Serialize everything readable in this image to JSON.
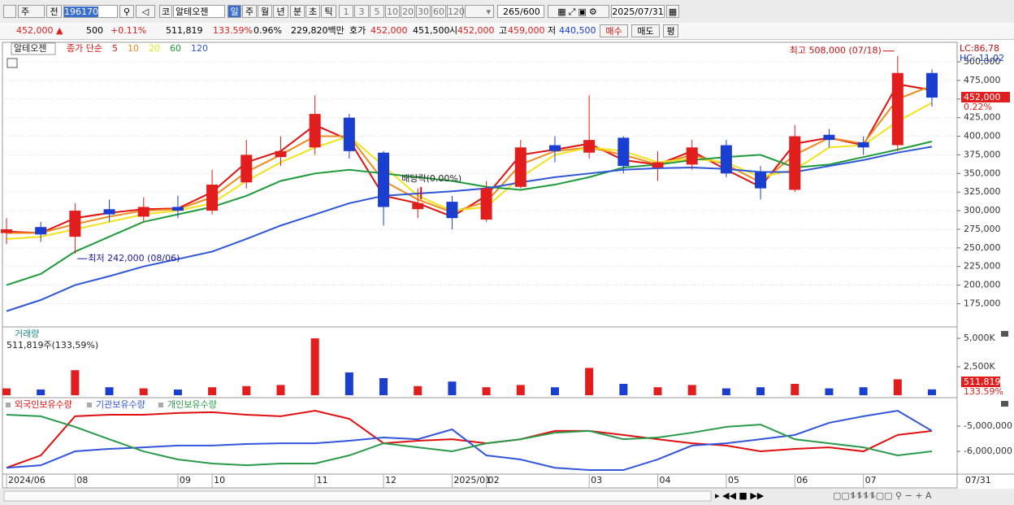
{
  "toolbar": {
    "items": [
      "주",
      "전",
      "196170",
      "코",
      "알테오젠",
      "일",
      "주",
      "월",
      "년",
      "분",
      "초",
      "틱",
      "1",
      "3",
      "5",
      "10",
      "20",
      "30",
      "60",
      "120",
      "265",
      "/600",
      "2025/07/31"
    ]
  },
  "info_bar": {
    "items": [
      "452,000 ▲",
      "500",
      "+0.11%",
      "511,819",
      "133.59%",
      "0.96%",
      "229,820백만",
      "호가",
      "452,000",
      "451,500",
      "시",
      "452,000",
      "고",
      "459,000",
      "저",
      "440,500",
      "매수",
      "매도",
      "평"
    ]
  },
  "chart_data": [
    {
      "type": "candlestick",
      "title": "알테오젠",
      "legend_prefix": "종가 단순",
      "categories": [
        "2024/06",
        null,
        "08",
        null,
        null,
        "09",
        "10",
        null,
        null,
        "11",
        null,
        "12",
        null,
        "2025/01",
        "02",
        null,
        null,
        "03",
        null,
        "04",
        null,
        "05",
        null,
        "06",
        null,
        "07",
        null,
        null
      ],
      "end_label": "07/31",
      "open": [
        270000,
        278000,
        265000,
        302000,
        292000,
        305000,
        300000,
        338000,
        372000,
        385000,
        425000,
        378000,
        302000,
        312000,
        288000,
        332000,
        388000,
        378000,
        398000,
        358000,
        362000,
        388000,
        352000,
        328000,
        402000,
        392000,
        388000,
        485000
      ],
      "high": [
        290000,
        285000,
        310000,
        315000,
        318000,
        320000,
        355000,
        395000,
        400000,
        455000,
        430000,
        380000,
        330000,
        320000,
        340000,
        395000,
        400000,
        455000,
        400000,
        380000,
        395000,
        395000,
        360000,
        415000,
        410000,
        400000,
        508000,
        490000
      ],
      "low": [
        255000,
        258000,
        242000,
        285000,
        285000,
        290000,
        295000,
        330000,
        360000,
        375000,
        370000,
        280000,
        290000,
        275000,
        285000,
        330000,
        365000,
        370000,
        350000,
        340000,
        355000,
        345000,
        315000,
        325000,
        385000,
        375000,
        380000,
        440000
      ],
      "close": [
        275000,
        268000,
        300000,
        295000,
        305000,
        300000,
        335000,
        375000,
        380000,
        430000,
        380000,
        305000,
        310000,
        290000,
        330000,
        385000,
        380000,
        395000,
        360000,
        365000,
        385000,
        350000,
        330000,
        400000,
        395000,
        385000,
        485000,
        452000
      ],
      "up_color": "#e21d1d",
      "down_color": "#1a3fd0",
      "series": [
        {
          "name": "5",
          "color": "#e01010",
          "values": [
            272000,
            270000,
            290000,
            297000,
            302000,
            303000,
            325000,
            365000,
            380000,
            415000,
            395000,
            320000,
            310000,
            292000,
            320000,
            375000,
            382000,
            390000,
            368000,
            362000,
            380000,
            355000,
            332000,
            390000,
            398000,
            388000,
            470000,
            462000
          ]
        },
        {
          "name": "10",
          "color": "#f08a1c",
          "values": [
            270000,
            270000,
            282000,
            292000,
            300000,
            302000,
            318000,
            352000,
            375000,
            400000,
            400000,
            340000,
            315000,
            298000,
            312000,
            362000,
            380000,
            385000,
            375000,
            362000,
            375000,
            362000,
            338000,
            375000,
            398000,
            390000,
            450000,
            468000
          ]
        },
        {
          "name": "20",
          "color": "#f2e21a",
          "values": [
            262000,
            265000,
            275000,
            285000,
            295000,
            300000,
            310000,
            340000,
            365000,
            385000,
            400000,
            360000,
            320000,
            300000,
            305000,
            345000,
            375000,
            385000,
            380000,
            365000,
            370000,
            365000,
            345000,
            355000,
            385000,
            388000,
            420000,
            445000
          ]
        },
        {
          "name": "60",
          "color": "#1f9a3a",
          "values": [
            200000,
            215000,
            245000,
            265000,
            285000,
            295000,
            305000,
            320000,
            340000,
            350000,
            355000,
            350000,
            345000,
            340000,
            332000,
            328000,
            335000,
            345000,
            358000,
            362000,
            368000,
            372000,
            375000,
            358000,
            362000,
            372000,
            382000,
            393000
          ]
        },
        {
          "name": "120",
          "color": "#2e56d8",
          "values": [
            165000,
            180000,
            200000,
            212000,
            225000,
            235000,
            245000,
            262000,
            280000,
            295000,
            310000,
            320000,
            323000,
            326000,
            330000,
            338000,
            345000,
            350000,
            355000,
            357000,
            358000,
            356000,
            352000,
            352000,
            360000,
            368000,
            378000,
            386000
          ]
        }
      ],
      "ylim": [
        146000,
        523000
      ],
      "yticks": [
        {
          "value": 175000,
          "label": "175,000"
        },
        {
          "value": 200000,
          "label": "200,000"
        },
        {
          "value": 225000,
          "label": "225,000"
        },
        {
          "value": 250000,
          "label": "250,000"
        },
        {
          "value": 275000,
          "label": "275,000"
        },
        {
          "value": 300000,
          "label": "300,000"
        },
        {
          "value": 325000,
          "label": "325,000"
        },
        {
          "value": 350000,
          "label": "350,000"
        },
        {
          "value": 375000,
          "label": "375,000"
        },
        {
          "value": 400000,
          "label": "400,000"
        },
        {
          "value": 425000,
          "label": "425,000"
        },
        {
          "value": 450000,
          "label": "450,000"
        },
        {
          "value": 475000,
          "label": "475,000"
        },
        {
          "value": 500000,
          "label": "500,000"
        }
      ],
      "grid": true,
      "annotations": {
        "high": "최고 508,000 (07/18)",
        "low": "최저 242,000 (08/06)",
        "dividend": "배당락(0.00%)",
        "lc": "LC:86,78",
        "hc": "HC:-11,02",
        "price_tag": "452,000",
        "price_change": "0.22%"
      }
    },
    {
      "type": "bar",
      "title": "거래량",
      "info": "511,819주(133,59%)",
      "values": [
        600000,
        500000,
        2200000,
        700000,
        600000,
        500000,
        700000,
        800000,
        900000,
        5000000,
        2000000,
        1500000,
        800000,
        1200000,
        700000,
        900000,
        700000,
        2400000,
        1000000,
        700000,
        900000,
        600000,
        700000,
        1000000,
        600000,
        700000,
        1400000,
        511819
      ],
      "ylim": [
        0,
        5790000
      ],
      "yticks": [
        {
          "value": 2500000,
          "label": "2,500K"
        },
        {
          "value": 5000000,
          "label": "5,000K"
        }
      ],
      "tag": "511,819",
      "tag_ratio": "133.59%"
    },
    {
      "type": "line",
      "series": [
        {
          "name": "외국인보유수량",
          "color": "#e01010",
          "values": [
            -6650000,
            -6160000,
            -4610000,
            -4550000,
            -4550000,
            -4480000,
            -4450000,
            -4550000,
            -4610000,
            -4390000,
            -4710000,
            -5680000,
            -5580000,
            -5520000,
            -5680000,
            -5520000,
            -5190000,
            -5190000,
            -5350000,
            -5520000,
            -5680000,
            -5770000,
            -6000000,
            -5900000,
            -5840000,
            -6000000,
            -5350000,
            -5190000
          ]
        },
        {
          "name": "기관보유수량",
          "color": "#3355dd",
          "values": [
            -6650000,
            -6550000,
            -6000000,
            -5900000,
            -5840000,
            -5770000,
            -5770000,
            -5710000,
            -5680000,
            -5680000,
            -5580000,
            -5450000,
            -5520000,
            -5130000,
            -6160000,
            -6320000,
            -6650000,
            -6740000,
            -6740000,
            -6320000,
            -5770000,
            -5680000,
            -5520000,
            -5350000,
            -4870000,
            -4610000,
            -4390000,
            -5190000
          ]
        },
        {
          "name": "개인보유수량",
          "color": "#2a9a4a",
          "values": [
            -4550000,
            -4610000,
            -5030000,
            -5520000,
            -6000000,
            -6320000,
            -6480000,
            -6550000,
            -6480000,
            -6480000,
            -6160000,
            -5680000,
            -5840000,
            -6000000,
            -5680000,
            -5520000,
            -5260000,
            -5190000,
            -5520000,
            -5450000,
            -5260000,
            -5030000,
            -4940000,
            -5520000,
            -5680000,
            -5840000,
            -6160000,
            -6000000
          ]
        }
      ],
      "ylim": [
        -6900000,
        -3970000
      ],
      "yticks": [
        {
          "value": -5000000,
          "label": "-5,000,000"
        },
        {
          "value": -6000000,
          "label": "-6,000,000"
        }
      ]
    }
  ]
}
